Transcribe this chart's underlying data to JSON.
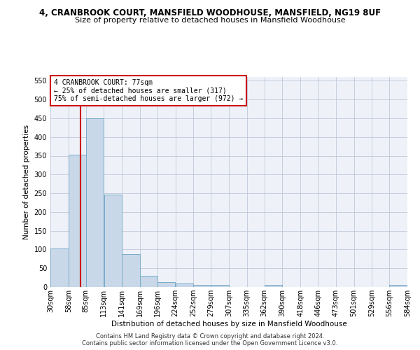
{
  "title1": "4, CRANBROOK COURT, MANSFIELD WOODHOUSE, MANSFIELD, NG19 8UF",
  "title2": "Size of property relative to detached houses in Mansfield Woodhouse",
  "xlabel": "Distribution of detached houses by size in Mansfield Woodhouse",
  "ylabel": "Number of detached properties",
  "footnote1": "Contains HM Land Registry data © Crown copyright and database right 2024.",
  "footnote2": "Contains public sector information licensed under the Open Government Licence v3.0.",
  "annotation_line1": "4 CRANBROOK COURT: 77sqm",
  "annotation_line2": "← 25% of detached houses are smaller (317)",
  "annotation_line3": "75% of semi-detached houses are larger (972) →",
  "subject_value": 77,
  "bar_color": "#c8d8e8",
  "bar_edge_color": "#7aabca",
  "subject_line_color": "#cc0000",
  "annotation_box_edge_color": "#cc0000",
  "background_color": "#ffffff",
  "plot_bg_color": "#eef2f8",
  "grid_color": "#c0c8d8",
  "bin_edges": [
    30,
    58,
    85,
    113,
    141,
    169,
    196,
    224,
    252,
    279,
    307,
    335,
    362,
    390,
    418,
    446,
    473,
    501,
    529,
    556,
    584
  ],
  "bar_heights": [
    103,
    353,
    449,
    246,
    87,
    30,
    14,
    9,
    5,
    5,
    0,
    0,
    5,
    0,
    0,
    0,
    0,
    0,
    0,
    5
  ],
  "ylim": [
    0,
    560
  ],
  "yticks": [
    0,
    50,
    100,
    150,
    200,
    250,
    300,
    350,
    400,
    450,
    500,
    550
  ],
  "title1_fontsize": 8.5,
  "title2_fontsize": 8.0,
  "axis_label_fontsize": 7.5,
  "tick_fontsize": 7.0,
  "annot_fontsize": 7.0,
  "footnote_fontsize": 6.0
}
